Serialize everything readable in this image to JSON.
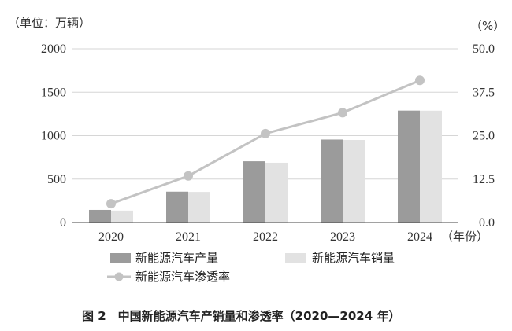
{
  "chart_data": {
    "type": "bar+line",
    "categories": [
      "2020",
      "2021",
      "2022",
      "2023",
      "2024"
    ],
    "series": [
      {
        "name": "新能源汽车产量",
        "kind": "bar",
        "axis": "left",
        "color": "#9b9b9b",
        "values": [
          145,
          355,
          705,
          955,
          1288
        ]
      },
      {
        "name": "新能源汽车销量",
        "kind": "bar",
        "axis": "left",
        "color": "#e2e2e2",
        "values": [
          137,
          352,
          688,
          950,
          1287
        ]
      },
      {
        "name": "新能源汽车渗透率",
        "kind": "line",
        "axis": "right",
        "color": "#c3c3c3",
        "values": [
          5.4,
          13.4,
          25.6,
          31.6,
          40.9
        ]
      }
    ],
    "left_axis": {
      "unit_label": "（单位：万辆）",
      "ylim": [
        0,
        2000
      ],
      "ticks": [
        "0",
        "500",
        "1000",
        "1500",
        "2000"
      ]
    },
    "right_axis": {
      "unit_label": "（%）",
      "ylim": [
        0,
        50
      ],
      "ticks": [
        "0.0",
        "12.5",
        "25.0",
        "37.5",
        "50.0"
      ]
    },
    "x_axis_suffix": "（年份）",
    "grid": true,
    "legend_position": "bottom",
    "caption": "图 2　中国新能源汽车产销量和渗透率（2020—2024 年）"
  }
}
